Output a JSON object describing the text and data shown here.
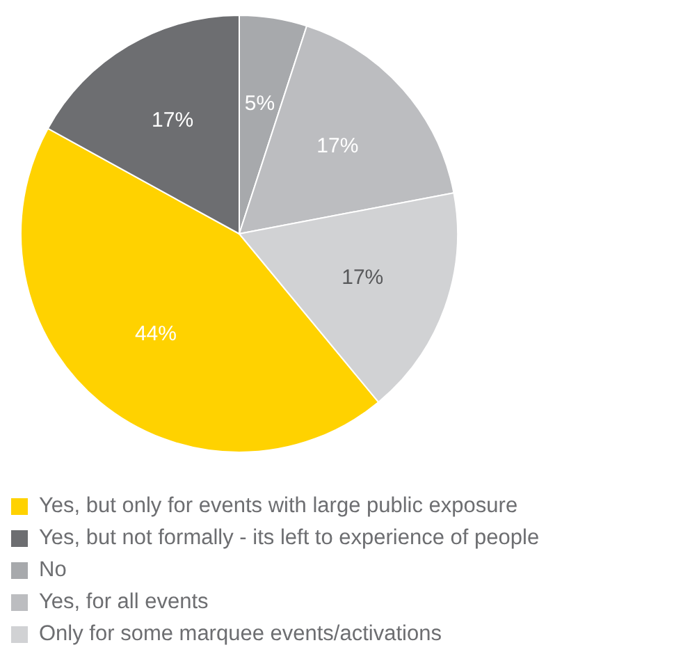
{
  "chart_data": {
    "type": "pie",
    "categories": [
      "Yes, but only for events with large public exposure",
      "Yes, but not formally - its left to experience of people",
      "No",
      "Yes, for all events",
      "Only for some marquee events/activations"
    ],
    "values": [
      44,
      17,
      5,
      17,
      17
    ],
    "colors": [
      "#ffd200",
      "#6d6e71",
      "#a7a9ac",
      "#bcbdc0",
      "#d1d2d4"
    ],
    "value_labels": [
      "44%",
      "17%",
      "5%",
      "17%",
      "17%"
    ],
    "legend": "bottom"
  }
}
